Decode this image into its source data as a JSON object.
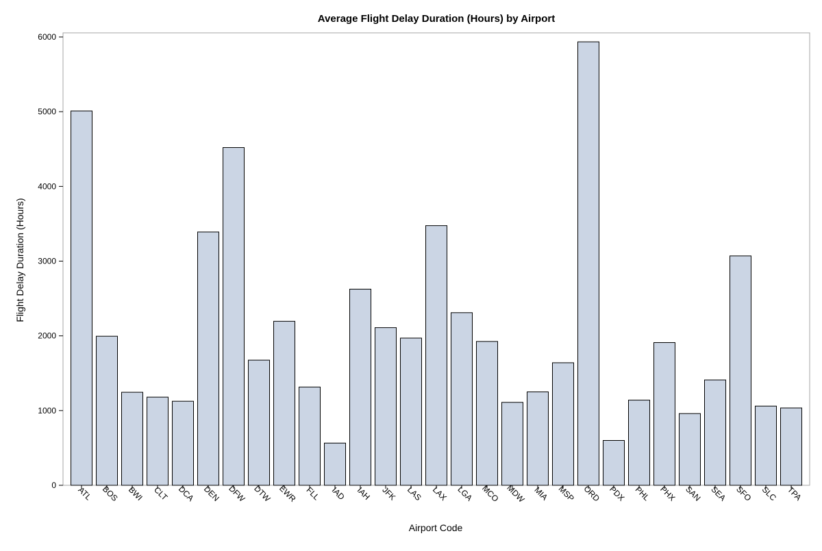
{
  "chart_data": {
    "type": "bar",
    "title": "Average Flight Delay Duration (Hours) by Airport",
    "xlabel": "Airport Code",
    "ylabel": "Flight Delay Duration (Hours)",
    "ylim": [
      0,
      6000
    ],
    "yticks": [
      0,
      1000,
      2000,
      3000,
      4000,
      5000,
      6000
    ],
    "grid": false,
    "categories": [
      "ATL",
      "BOS",
      "BWI",
      "CLT",
      "DCA",
      "DEN",
      "DFW",
      "DTW",
      "EWR",
      "FLL",
      "IAD",
      "IAH",
      "JFK",
      "LAS",
      "LAX",
      "LGA",
      "MCO",
      "MDW",
      "MIA",
      "MSP",
      "ORD",
      "PDX",
      "PHL",
      "PHX",
      "SAN",
      "SEA",
      "SFO",
      "SLC",
      "TPA"
    ],
    "values": [
      5010,
      1995,
      1245,
      1180,
      1125,
      3390,
      4520,
      1675,
      2195,
      1315,
      565,
      2625,
      2110,
      1970,
      3475,
      2310,
      1925,
      1110,
      1250,
      1640,
      5935,
      600,
      1140,
      1910,
      960,
      1410,
      3070,
      1060,
      1035
    ],
    "colors": {
      "bar_fill": "#cbd5e4",
      "bar_stroke": "#000000",
      "frame": "#a6a6a6"
    }
  }
}
